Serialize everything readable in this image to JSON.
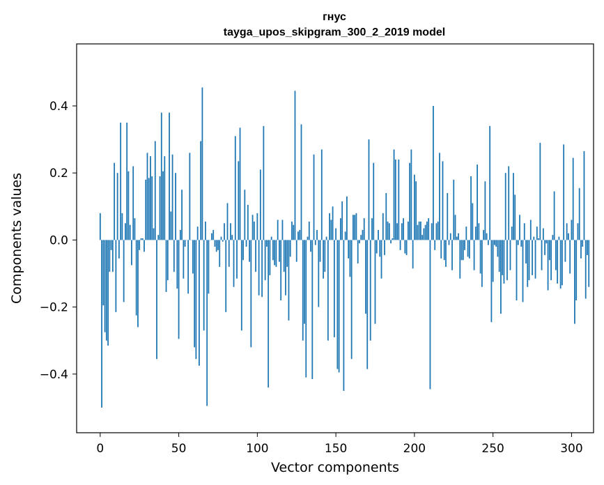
{
  "chart_data": {
    "type": "bar",
    "title": "гнус",
    "subtitle": "tayga_upos_skipgram_300_2_2019 model",
    "xlabel": "Vector components",
    "ylabel": "Components values",
    "xlim": [
      -15,
      314
    ],
    "ylim": [
      -0.575,
      0.585
    ],
    "xticks": [
      0,
      50,
      100,
      150,
      200,
      250,
      300
    ],
    "yticks": [
      -0.4,
      -0.2,
      0.0,
      0.2,
      0.4
    ],
    "ytick_labels": [
      "−0.4",
      "−0.2",
      "0.0",
      "0.2",
      "0.4"
    ],
    "bar_color": "#1f77b4",
    "series": [
      {
        "name": "гнус",
        "values": [
          0.08,
          -0.5,
          -0.195,
          -0.275,
          -0.3,
          -0.315,
          -0.095,
          -0.03,
          -0.095,
          0.23,
          -0.215,
          0.2,
          -0.055,
          0.35,
          0.08,
          -0.185,
          0.05,
          0.35,
          0.205,
          0.045,
          -0.075,
          0.22,
          0.065,
          -0.225,
          -0.26,
          -0.03,
          0.005,
          0.005,
          -0.035,
          0.18,
          0.26,
          0.185,
          0.25,
          0.19,
          0.035,
          0.295,
          -0.355,
          0.015,
          0.19,
          0.38,
          0.205,
          0.25,
          -0.155,
          -0.12,
          0.38,
          0.085,
          0.255,
          -0.095,
          0.2,
          -0.145,
          -0.295,
          0.03,
          0.15,
          -0.115,
          -0.02,
          0.0,
          -0.16,
          0.26,
          0.0,
          -0.1,
          -0.32,
          -0.355,
          0.04,
          -0.375,
          0.295,
          0.455,
          -0.27,
          0.055,
          -0.495,
          -0.16,
          0.0,
          0.02,
          0.03,
          -0.02,
          -0.035,
          -0.03,
          -0.08,
          0.01,
          -0.005,
          0.05,
          -0.215,
          0.11,
          -0.08,
          0.05,
          0.015,
          -0.14,
          0.31,
          -0.115,
          0.235,
          0.335,
          -0.27,
          -0.06,
          0.15,
          -0.02,
          0.105,
          -0.065,
          -0.32,
          0.075,
          0.055,
          -0.095,
          0.08,
          -0.165,
          0.21,
          -0.17,
          0.34,
          -0.12,
          -0.02,
          -0.44,
          -0.105,
          0.01,
          -0.06,
          -0.075,
          -0.08,
          0.06,
          -0.065,
          -0.18,
          0.06,
          -0.095,
          -0.165,
          -0.08,
          -0.24,
          -0.05,
          0.055,
          0.045,
          0.445,
          -0.065,
          0.025,
          0.03,
          0.345,
          -0.3,
          -0.25,
          -0.41,
          0.01,
          0.055,
          -0.035,
          -0.415,
          0.255,
          -0.015,
          0.03,
          -0.2,
          -0.065,
          0.27,
          -0.115,
          -0.095,
          0.01,
          -0.3,
          0.08,
          0.06,
          0.1,
          -0.29,
          0.035,
          -0.385,
          -0.395,
          0.065,
          0.115,
          -0.45,
          0.025,
          0.13,
          -0.055,
          -0.11,
          -0.355,
          0.075,
          0.075,
          0.08,
          -0.07,
          -0.01,
          0.015,
          0.03,
          0.065,
          -0.22,
          -0.385,
          0.3,
          -0.3,
          0.065,
          0.23,
          -0.25,
          -0.04,
          0.03,
          -0.05,
          -0.115,
          0.08,
          -0.045,
          0.14,
          0.055,
          0.05,
          -0.01,
          0.005,
          0.27,
          0.24,
          0.05,
          0.24,
          -0.03,
          0.05,
          0.065,
          -0.04,
          -0.045,
          0.055,
          0.23,
          0.27,
          -0.085,
          0.195,
          0.175,
          0.045,
          0.055,
          0.055,
          0.015,
          0.035,
          0.045,
          0.055,
          0.065,
          -0.445,
          0.05,
          0.4,
          -0.03,
          0.05,
          0.055,
          0.26,
          -0.055,
          0.235,
          -0.06,
          -0.08,
          0.14,
          -0.015,
          0.02,
          -0.09,
          0.18,
          0.075,
          0.01,
          0.02,
          -0.115,
          -0.06,
          -0.06,
          -0.03,
          0.04,
          -0.05,
          -0.055,
          0.19,
          0.11,
          -0.09,
          0.04,
          0.225,
          0.05,
          -0.1,
          -0.14,
          0.03,
          0.175,
          0.02,
          -0.015,
          0.34,
          -0.245,
          -0.125,
          -0.015,
          -0.02,
          -0.05,
          -0.095,
          -0.22,
          -0.105,
          -0.13,
          0.2,
          -0.12,
          0.22,
          -0.09,
          0.04,
          0.2,
          0.135,
          -0.18,
          -0.015,
          0.075,
          -0.02,
          -0.185,
          0.05,
          -0.07,
          -0.14,
          -0.12,
          0.06,
          -0.105,
          0.01,
          -0.115,
          0.04,
          0.005,
          0.29,
          -0.09,
          0.035,
          -0.045,
          -0.01,
          -0.15,
          -0.06,
          -0.12,
          0.015,
          0.145,
          -0.09,
          -0.13,
          0.01,
          -0.145,
          -0.135,
          0.285,
          -0.065,
          0.05,
          0.02,
          -0.1,
          0.06,
          0.245,
          -0.25,
          -0.18,
          0.05,
          0.155,
          -0.055,
          -0.02,
          0.265,
          -0.175,
          -0.045,
          -0.14
        ]
      }
    ]
  }
}
